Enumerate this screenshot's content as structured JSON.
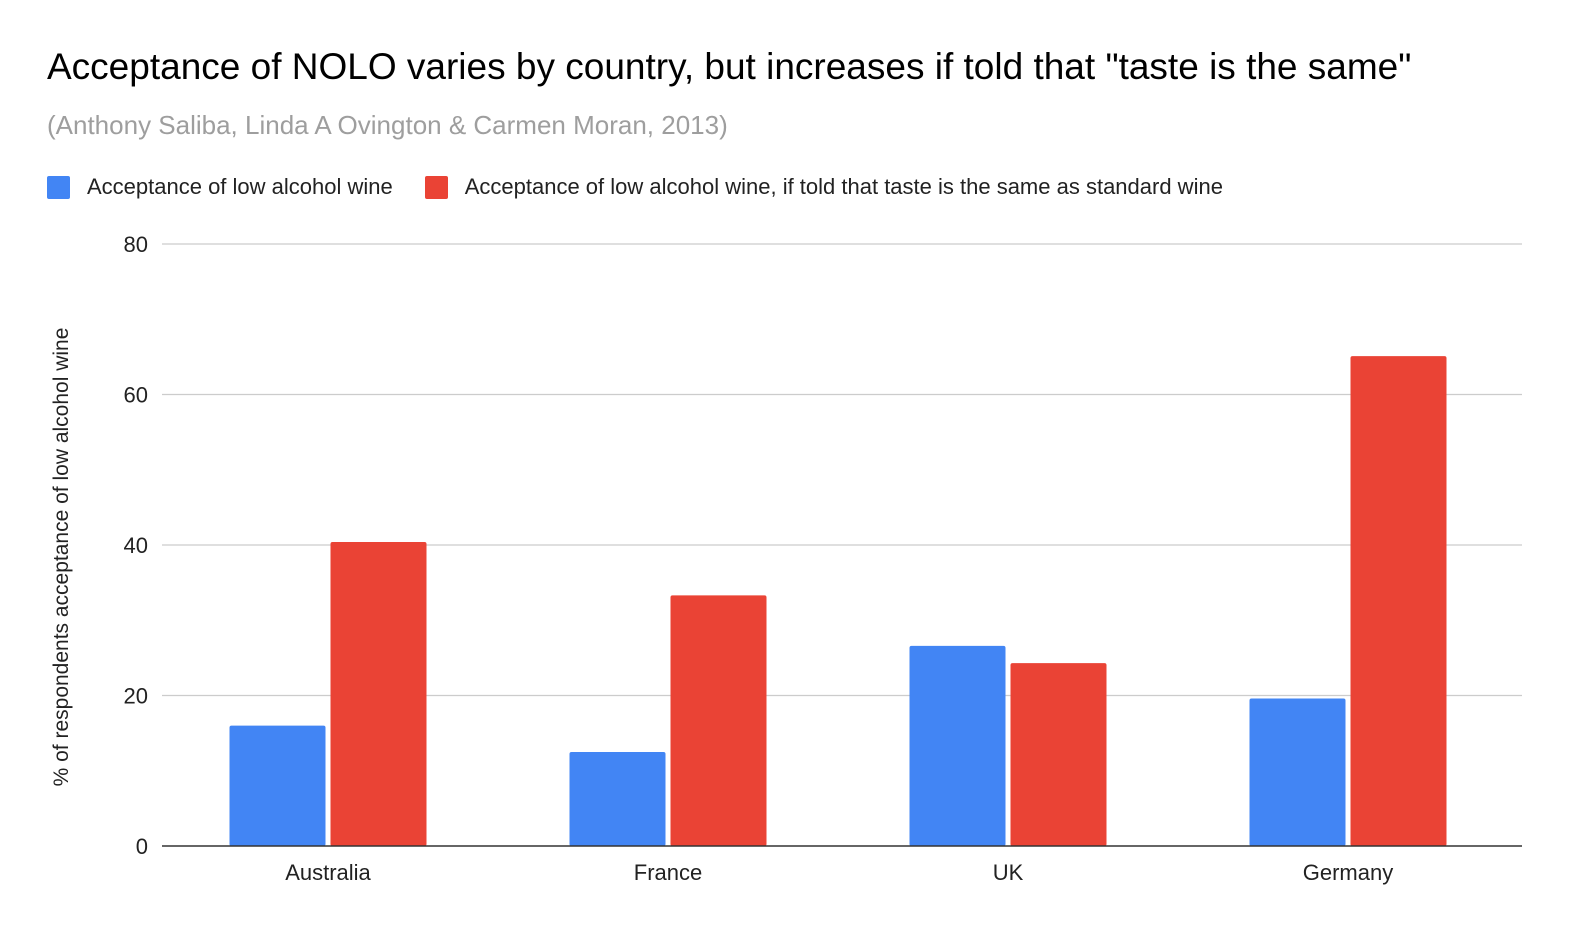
{
  "chart_data": {
    "type": "bar",
    "title": "Acceptance of NOLO varies by country, but increases if told that \"taste is the same\"",
    "subtitle": "(Anthony Saliba, Linda A Ovington & Carmen Moran, 2013)",
    "xlabel": "",
    "ylabel": "% of respondents acceptance of low alcohol wine",
    "ylim": [
      0,
      80
    ],
    "yticks": [
      0,
      20,
      40,
      60,
      80
    ],
    "grid": true,
    "legend_position": "top-left",
    "categories": [
      "Australia",
      "France",
      "UK",
      "Germany"
    ],
    "series": [
      {
        "name": "Acceptance of low alcohol wine",
        "color": "#4285f4",
        "values": [
          16,
          12.5,
          26.6,
          19.6
        ]
      },
      {
        "name": "Acceptance of low alcohol wine, if told that taste is the same as standard wine",
        "color": "#ea4335",
        "values": [
          40.4,
          33.3,
          24.3,
          65.1
        ]
      }
    ]
  }
}
